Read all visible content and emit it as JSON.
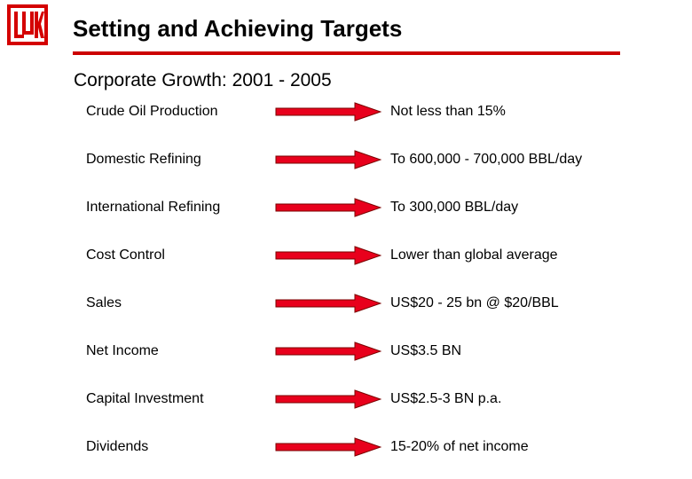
{
  "header": {
    "title": "Setting and Achieving Targets",
    "subtitle": "Corporate Growth: 2001 - 2005",
    "logo_icon": "lukoil-logo-icon",
    "rule_color": "#cc0000"
  },
  "arrow": {
    "icon": "right-arrow-icon",
    "fill_color": "#e8001c",
    "outline_color": "#7a0000"
  },
  "targets": [
    {
      "label": "Crude Oil Production",
      "value": "Not less than 15%"
    },
    {
      "label": "Domestic Refining",
      "value": "To 600,000 - 700,000 BBL/day"
    },
    {
      "label": "International Refining",
      "value": "To 300,000 BBL/day"
    },
    {
      "label": "Cost Control",
      "value": "Lower than global average"
    },
    {
      "label": "Sales",
      "value": "US$20 - 25 bn @ $20/BBL"
    },
    {
      "label": "Net Income",
      "value": "US$3.5 BN"
    },
    {
      "label": "Capital Investment",
      "value": "US$2.5-3 BN p.a."
    },
    {
      "label": "Dividends",
      "value": "15-20% of net income"
    }
  ]
}
